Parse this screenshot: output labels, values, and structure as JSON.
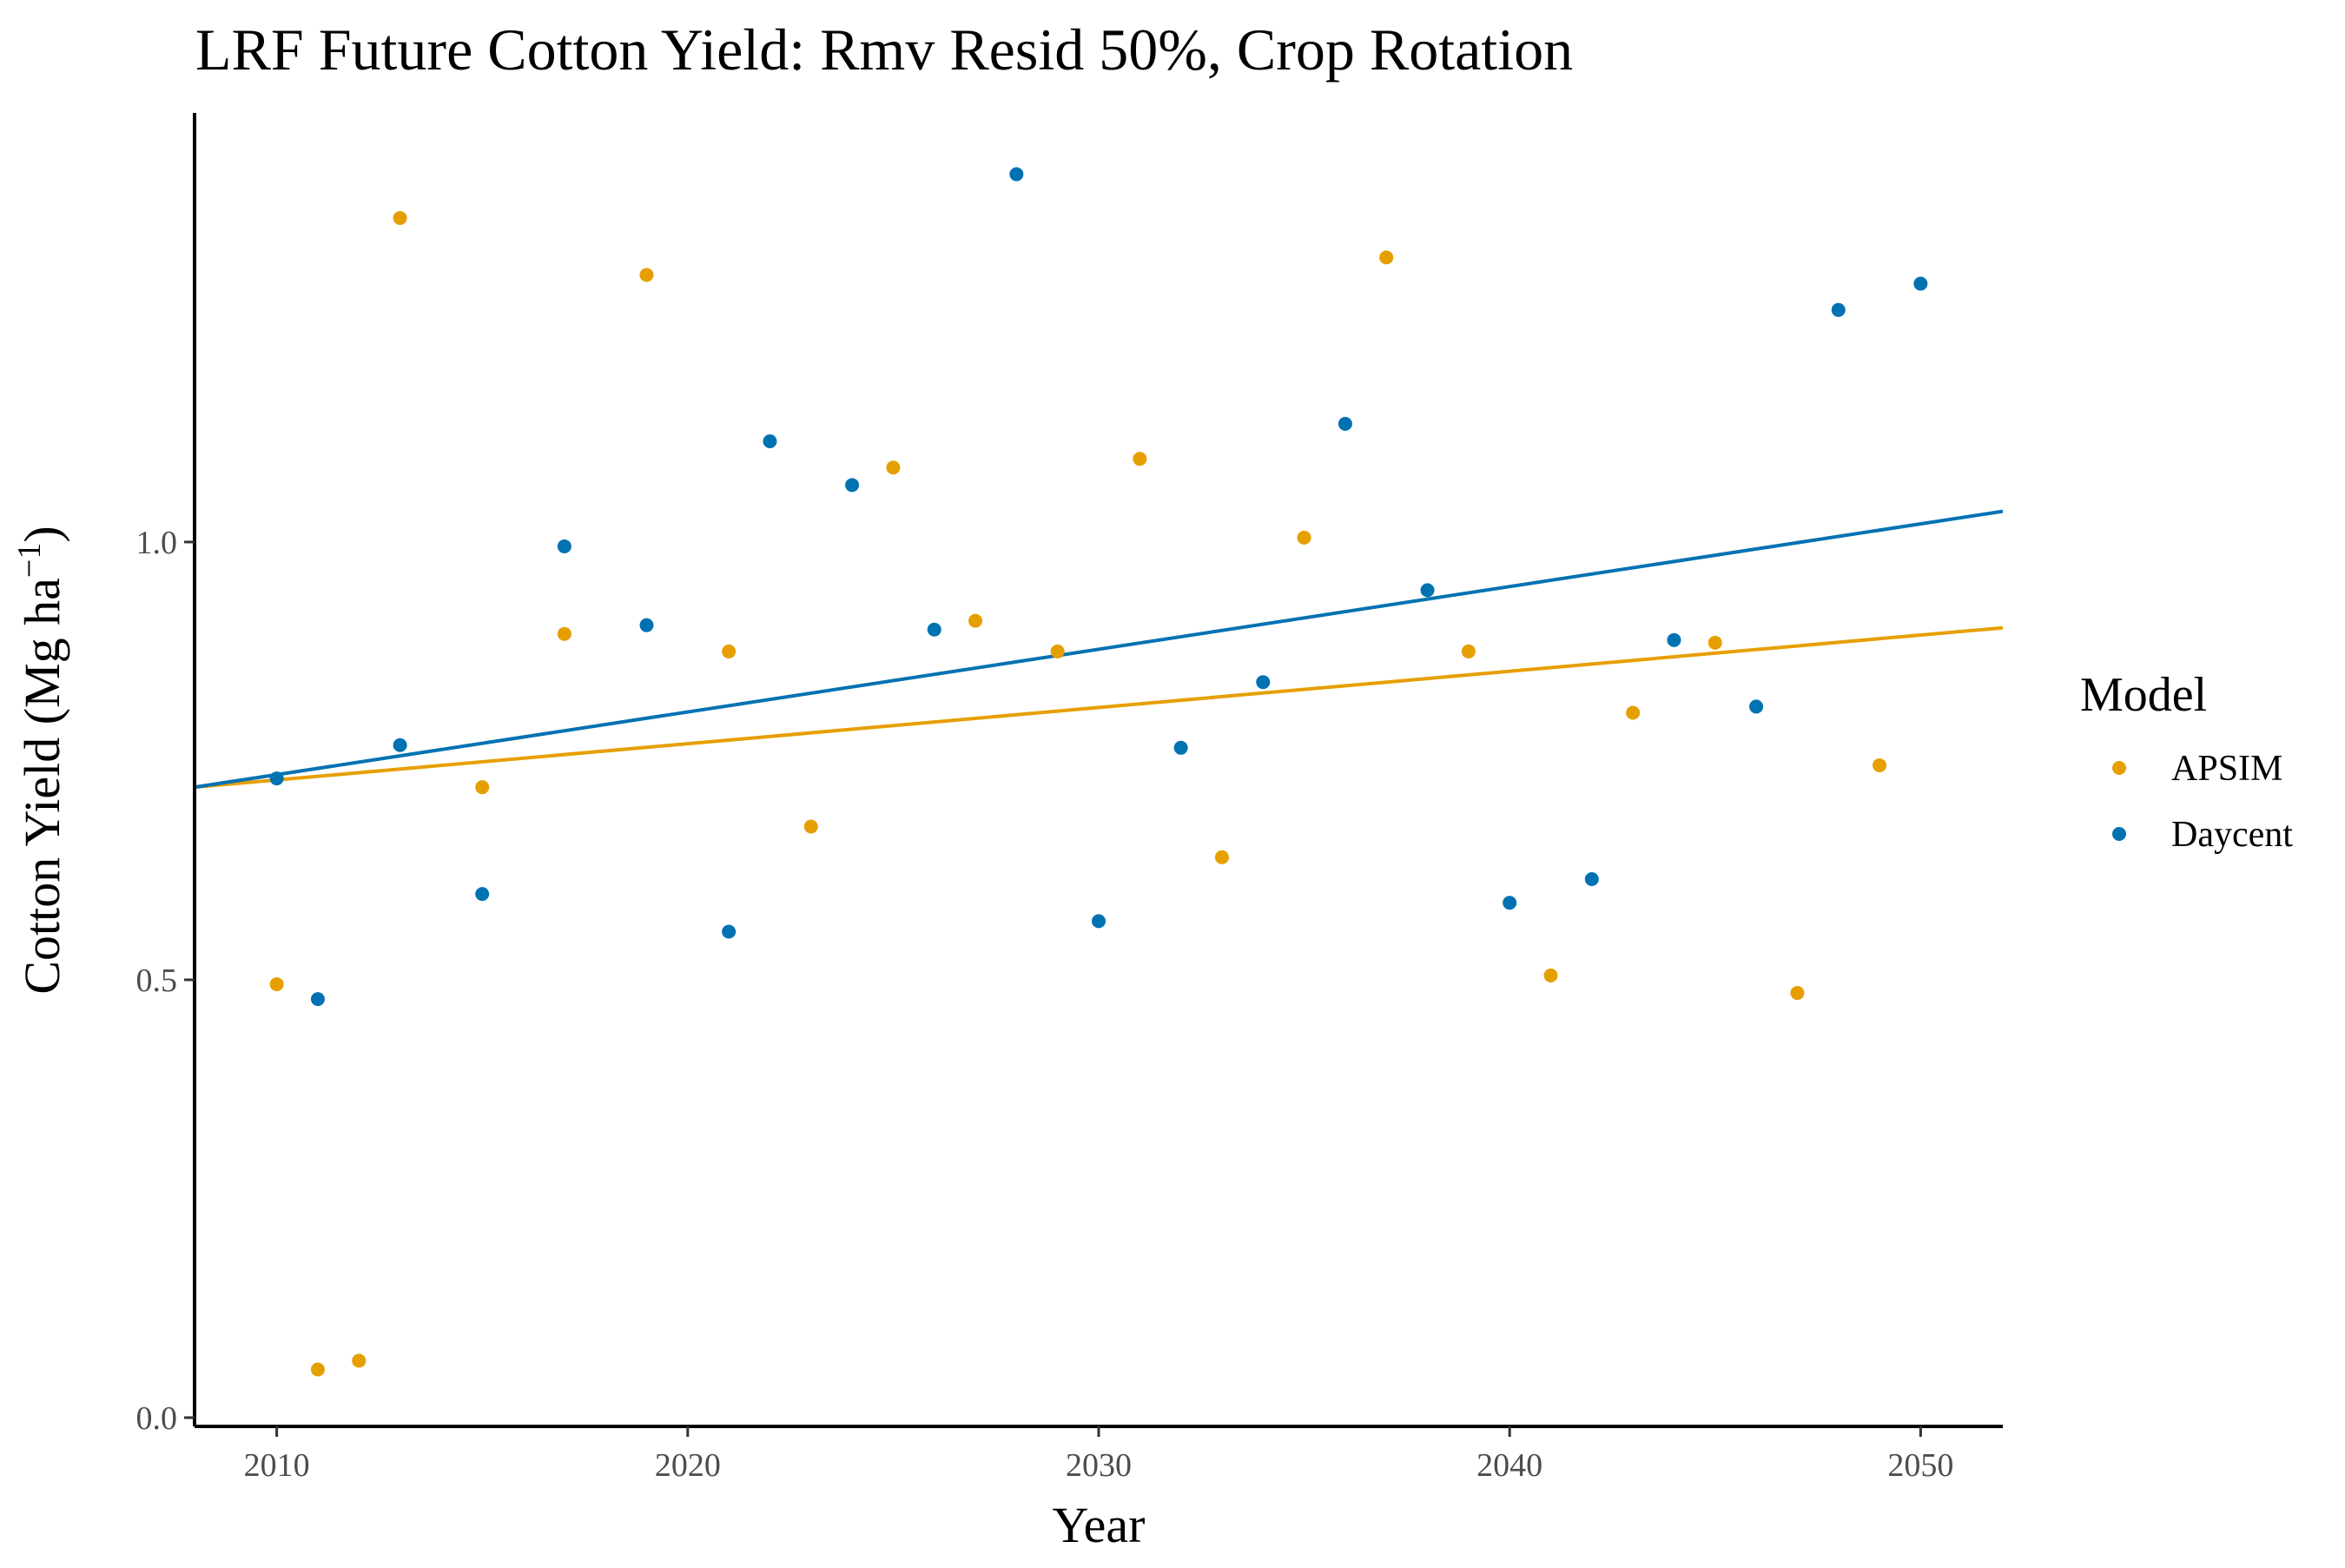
{
  "chart_data": {
    "type": "scatter",
    "title": "LRF Future Cotton Yield:  Rmv Resid 50%, Crop Rotation",
    "xlabel": "Year",
    "ylabel": "Cotton Yield (Mg ha",
    "ylabel_superscript": "−1",
    "ylabel_close": ")",
    "xlim": [
      2008,
      2052
    ],
    "ylim": [
      -0.01,
      1.49
    ],
    "x_ticks": [
      2010,
      2020,
      2030,
      2040,
      2050
    ],
    "y_ticks": [
      0.0,
      0.5,
      1.0
    ],
    "y_tick_labels": [
      "0.0",
      "0.5",
      "1.0"
    ],
    "grid": false,
    "legend": {
      "title": "Model",
      "placement": "right"
    },
    "series": [
      {
        "name": "APSIM",
        "color": "#E69F00",
        "points": [
          {
            "x": 2010,
            "y": 0.495
          },
          {
            "x": 2011,
            "y": 0.055
          },
          {
            "x": 2012,
            "y": 0.065
          },
          {
            "x": 2013,
            "y": 1.37
          },
          {
            "x": 2015,
            "y": 0.72
          },
          {
            "x": 2017,
            "y": 0.895
          },
          {
            "x": 2019,
            "y": 1.305
          },
          {
            "x": 2021,
            "y": 0.875
          },
          {
            "x": 2023,
            "y": 0.675
          },
          {
            "x": 2025,
            "y": 1.085
          },
          {
            "x": 2027,
            "y": 0.91
          },
          {
            "x": 2029,
            "y": 0.875
          },
          {
            "x": 2031,
            "y": 1.095
          },
          {
            "x": 2033,
            "y": 0.64
          },
          {
            "x": 2035,
            "y": 1.005
          },
          {
            "x": 2037,
            "y": 1.325
          },
          {
            "x": 2039,
            "y": 0.875
          },
          {
            "x": 2041,
            "y": 0.505
          },
          {
            "x": 2043,
            "y": 0.805
          },
          {
            "x": 2045,
            "y": 0.885
          },
          {
            "x": 2047,
            "y": 0.485
          },
          {
            "x": 2049,
            "y": 0.745
          }
        ],
        "trend": {
          "x": [
            2008,
            2052
          ],
          "y": [
            0.72,
            0.902
          ]
        }
      },
      {
        "name": "Daycent",
        "color": "#0072B2",
        "points": [
          {
            "x": 2010,
            "y": 0.73
          },
          {
            "x": 2011,
            "y": 0.478
          },
          {
            "x": 2013,
            "y": 0.768
          },
          {
            "x": 2015,
            "y": 0.598
          },
          {
            "x": 2017,
            "y": 0.995
          },
          {
            "x": 2019,
            "y": 0.905
          },
          {
            "x": 2021,
            "y": 0.555
          },
          {
            "x": 2022,
            "y": 1.115
          },
          {
            "x": 2024,
            "y": 1.065
          },
          {
            "x": 2026,
            "y": 0.9
          },
          {
            "x": 2028,
            "y": 1.42
          },
          {
            "x": 2030,
            "y": 0.567
          },
          {
            "x": 2032,
            "y": 0.765
          },
          {
            "x": 2034,
            "y": 0.84
          },
          {
            "x": 2036,
            "y": 1.135
          },
          {
            "x": 2038,
            "y": 0.945
          },
          {
            "x": 2040,
            "y": 0.588
          },
          {
            "x": 2042,
            "y": 0.615
          },
          {
            "x": 2044,
            "y": 0.888
          },
          {
            "x": 2046,
            "y": 0.812
          },
          {
            "x": 2048,
            "y": 1.265
          },
          {
            "x": 2050,
            "y": 1.295
          }
        ],
        "trend": {
          "x": [
            2008,
            2052
          ],
          "y": [
            0.72,
            1.035
          ]
        }
      }
    ]
  }
}
